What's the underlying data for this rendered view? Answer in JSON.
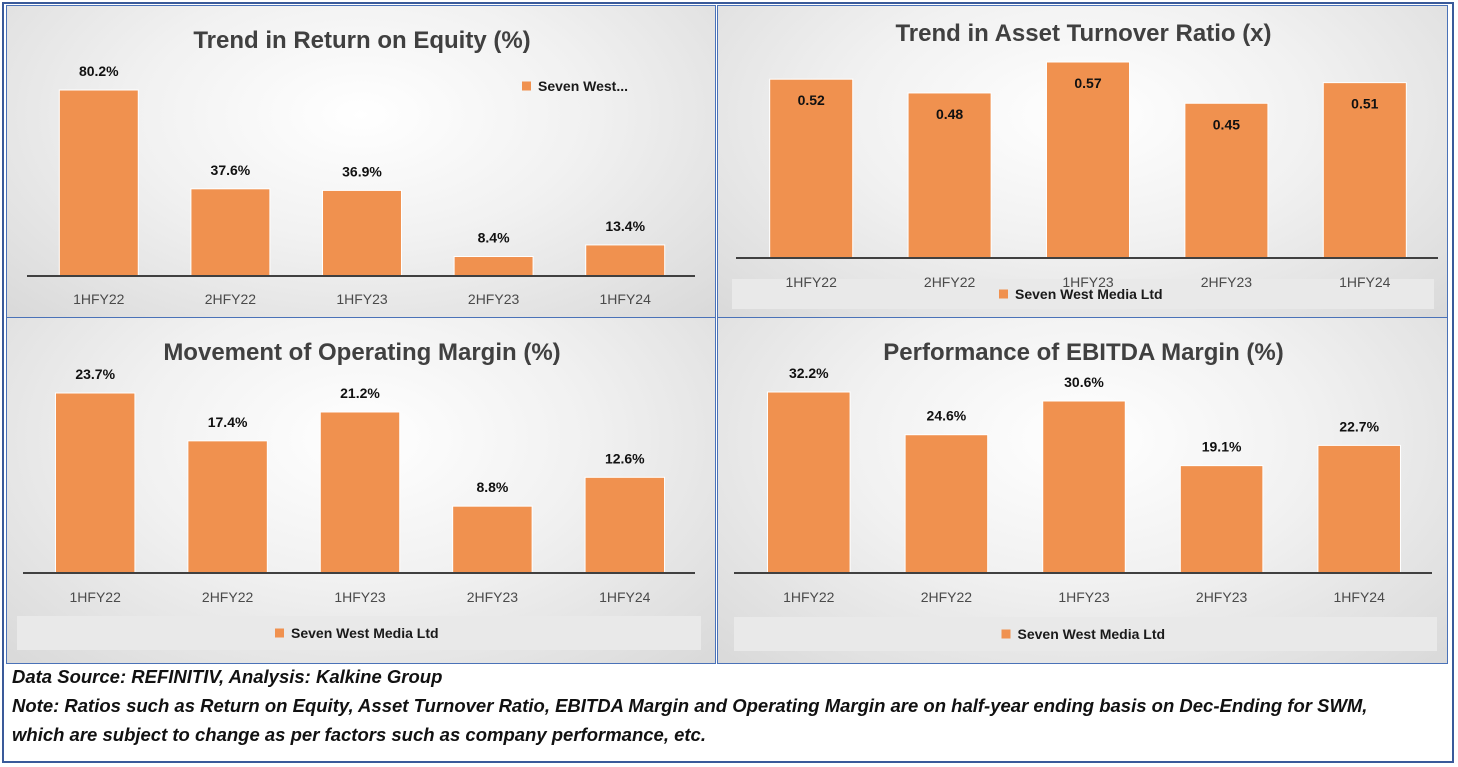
{
  "colors": {
    "bar": "#f0914f",
    "axis": "#404040",
    "legend_box": "#e9e9e9"
  },
  "chart_data": [
    {
      "type": "bar",
      "title": "Trend in Return on Equity (%)",
      "categories": [
        "1HFY22",
        "2HFY22",
        "1HFY23",
        "2HFY23",
        "1HFY24"
      ],
      "series": [
        {
          "name": "Seven West...",
          "values": [
            80.2,
            37.6,
            36.9,
            8.4,
            13.4
          ]
        }
      ],
      "data_labels": [
        "80.2%",
        "37.6%",
        "36.9%",
        "8.4%",
        "13.4%"
      ],
      "ylim": [
        0,
        80.2
      ],
      "legend": "top-right",
      "grid": false
    },
    {
      "type": "bar",
      "title": "Trend in Asset Turnover Ratio (x)",
      "categories": [
        "1HFY22",
        "2HFY22",
        "1HFY23",
        "2HFY23",
        "1HFY24"
      ],
      "series": [
        {
          "name": "Seven West Media Ltd",
          "values": [
            0.52,
            0.48,
            0.57,
            0.45,
            0.51
          ]
        }
      ],
      "data_labels": [
        "0.52",
        "0.48",
        "0.57",
        "0.45",
        "0.51"
      ],
      "ylim": [
        0,
        0.57
      ],
      "legend": "bottom",
      "grid": false
    },
    {
      "type": "bar",
      "title": "Movement of Operating Margin (%)",
      "categories": [
        "1HFY22",
        "2HFY22",
        "1HFY23",
        "2HFY23",
        "1HFY24"
      ],
      "series": [
        {
          "name": "Seven West Media Ltd",
          "values": [
            23.7,
            17.4,
            21.2,
            8.8,
            12.6
          ]
        }
      ],
      "data_labels": [
        "23.7%",
        "17.4%",
        "21.2%",
        "8.8%",
        "12.6%"
      ],
      "ylim": [
        0,
        23.7
      ],
      "legend": "bottom",
      "grid": false
    },
    {
      "type": "bar",
      "title": "Performance of EBITDA Margin (%)",
      "categories": [
        "1HFY22",
        "2HFY22",
        "1HFY23",
        "2HFY23",
        "1HFY24"
      ],
      "series": [
        {
          "name": "Seven West Media Ltd",
          "values": [
            32.2,
            24.6,
            30.6,
            19.1,
            22.7
          ]
        }
      ],
      "data_labels": [
        "32.2%",
        "24.6%",
        "30.6%",
        "19.1%",
        "22.7%"
      ],
      "ylim": [
        0,
        32.2
      ],
      "legend": "bottom",
      "grid": false
    }
  ],
  "footer": {
    "source": "Data Source: REFINITIV, Analysis: Kalkine Group",
    "note_line1": "Note: Ratios such as Return on Equity, Asset Turnover Ratio, EBITDA Margin and Operating Margin are on half-year ending basis on Dec-Ending for SWM,",
    "note_line2": "which are subject to change as per factors such as company performance, etc."
  }
}
